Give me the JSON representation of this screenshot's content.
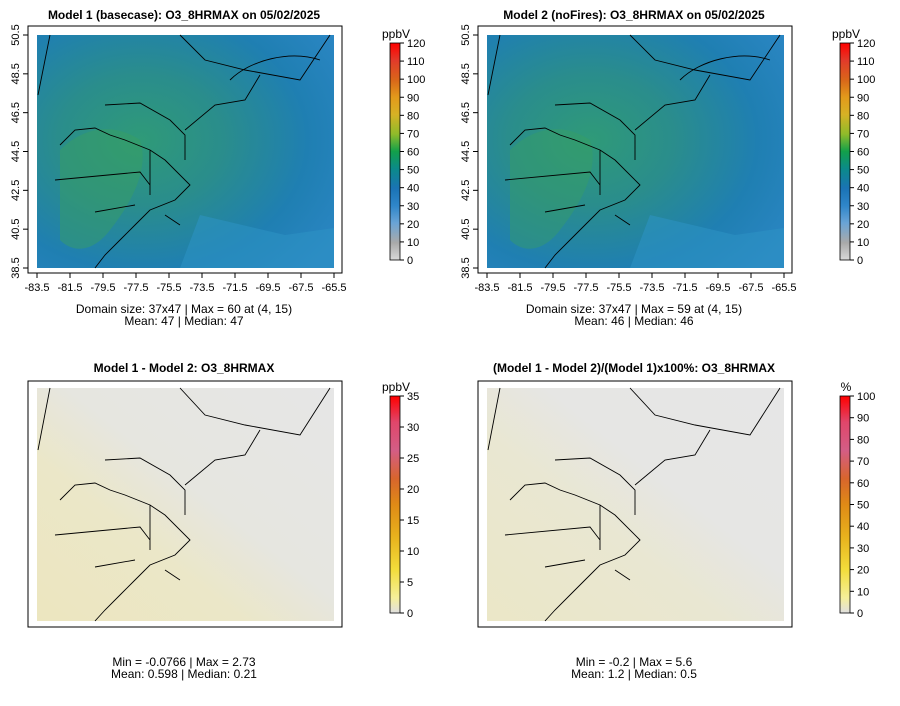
{
  "chart_data": [
    {
      "type": "heatmap",
      "title": "Model 1 (basecase): O3_8HRMAX on 05/02/2025",
      "x_ticks": [
        "-83.5",
        "-81.5",
        "-79.5",
        "-77.5",
        "-75.5",
        "-73.5",
        "-71.5",
        "-69.5",
        "-67.5",
        "-65.5"
      ],
      "y_ticks": [
        "38.5",
        "40.5",
        "42.5",
        "44.5",
        "46.5",
        "48.5",
        "50.5"
      ],
      "colorbar": {
        "unit": "ppbV",
        "min": 0,
        "max": 120,
        "ticks": [
          "0",
          "10",
          "20",
          "30",
          "40",
          "50",
          "60",
          "70",
          "80",
          "90",
          "100",
          "110",
          "120"
        ],
        "scale": "concentration"
      },
      "stats": [
        "Domain size: 37x47 | Max = 60 at (4, 15)",
        "Mean: 47 |  Median: 47"
      ],
      "values": {
        "mean": 47,
        "median": 47,
        "max": 60
      }
    },
    {
      "type": "heatmap",
      "title": "Model 2 (noFires): O3_8HRMAX on 05/02/2025",
      "x_ticks": [
        "-83.5",
        "-81.5",
        "-79.5",
        "-77.5",
        "-75.5",
        "-73.5",
        "-71.5",
        "-69.5",
        "-67.5",
        "-65.5"
      ],
      "y_ticks": [
        "38.5",
        "40.5",
        "42.5",
        "44.5",
        "46.5",
        "48.5",
        "50.5"
      ],
      "colorbar": {
        "unit": "ppbV",
        "min": 0,
        "max": 120,
        "ticks": [
          "0",
          "10",
          "20",
          "30",
          "40",
          "50",
          "60",
          "70",
          "80",
          "90",
          "100",
          "110",
          "120"
        ],
        "scale": "concentration"
      },
      "stats": [
        "Domain size: 37x47 | Max = 59 at (4, 15)",
        "Mean: 46 |  Median: 46"
      ],
      "values": {
        "mean": 46,
        "median": 46,
        "max": 59
      }
    },
    {
      "type": "heatmap",
      "title": "Model 1 - Model 2: O3_8HRMAX",
      "x_ticks": [],
      "y_ticks": [],
      "colorbar": {
        "unit": "ppbV",
        "min": 0,
        "max": 35,
        "ticks": [
          "0",
          "5",
          "10",
          "15",
          "20",
          "25",
          "30",
          "35"
        ],
        "scale": "difference"
      },
      "stats": [
        "Min = -0.0766 | Max = 2.73",
        "Mean: 0.598 |  Median: 0.21"
      ],
      "values": {
        "min": -0.0766,
        "max": 2.73,
        "mean": 0.598,
        "median": 0.21
      }
    },
    {
      "type": "heatmap",
      "title": "(Model 1 - Model 2)/(Model 1)x100%: O3_8HRMAX",
      "x_ticks": [],
      "y_ticks": [],
      "colorbar": {
        "unit": "%",
        "min": 0,
        "max": 100,
        "ticks": [
          "0",
          "10",
          "20",
          "30",
          "40",
          "50",
          "60",
          "70",
          "80",
          "90",
          "100"
        ],
        "scale": "difference"
      },
      "stats": [
        "Min = -0.2 | Max = 5.6",
        "Mean: 1.2 |  Median: 0.5"
      ],
      "values": {
        "min": -0.2,
        "max": 5.6,
        "mean": 1.2,
        "median": 0.5
      }
    }
  ]
}
